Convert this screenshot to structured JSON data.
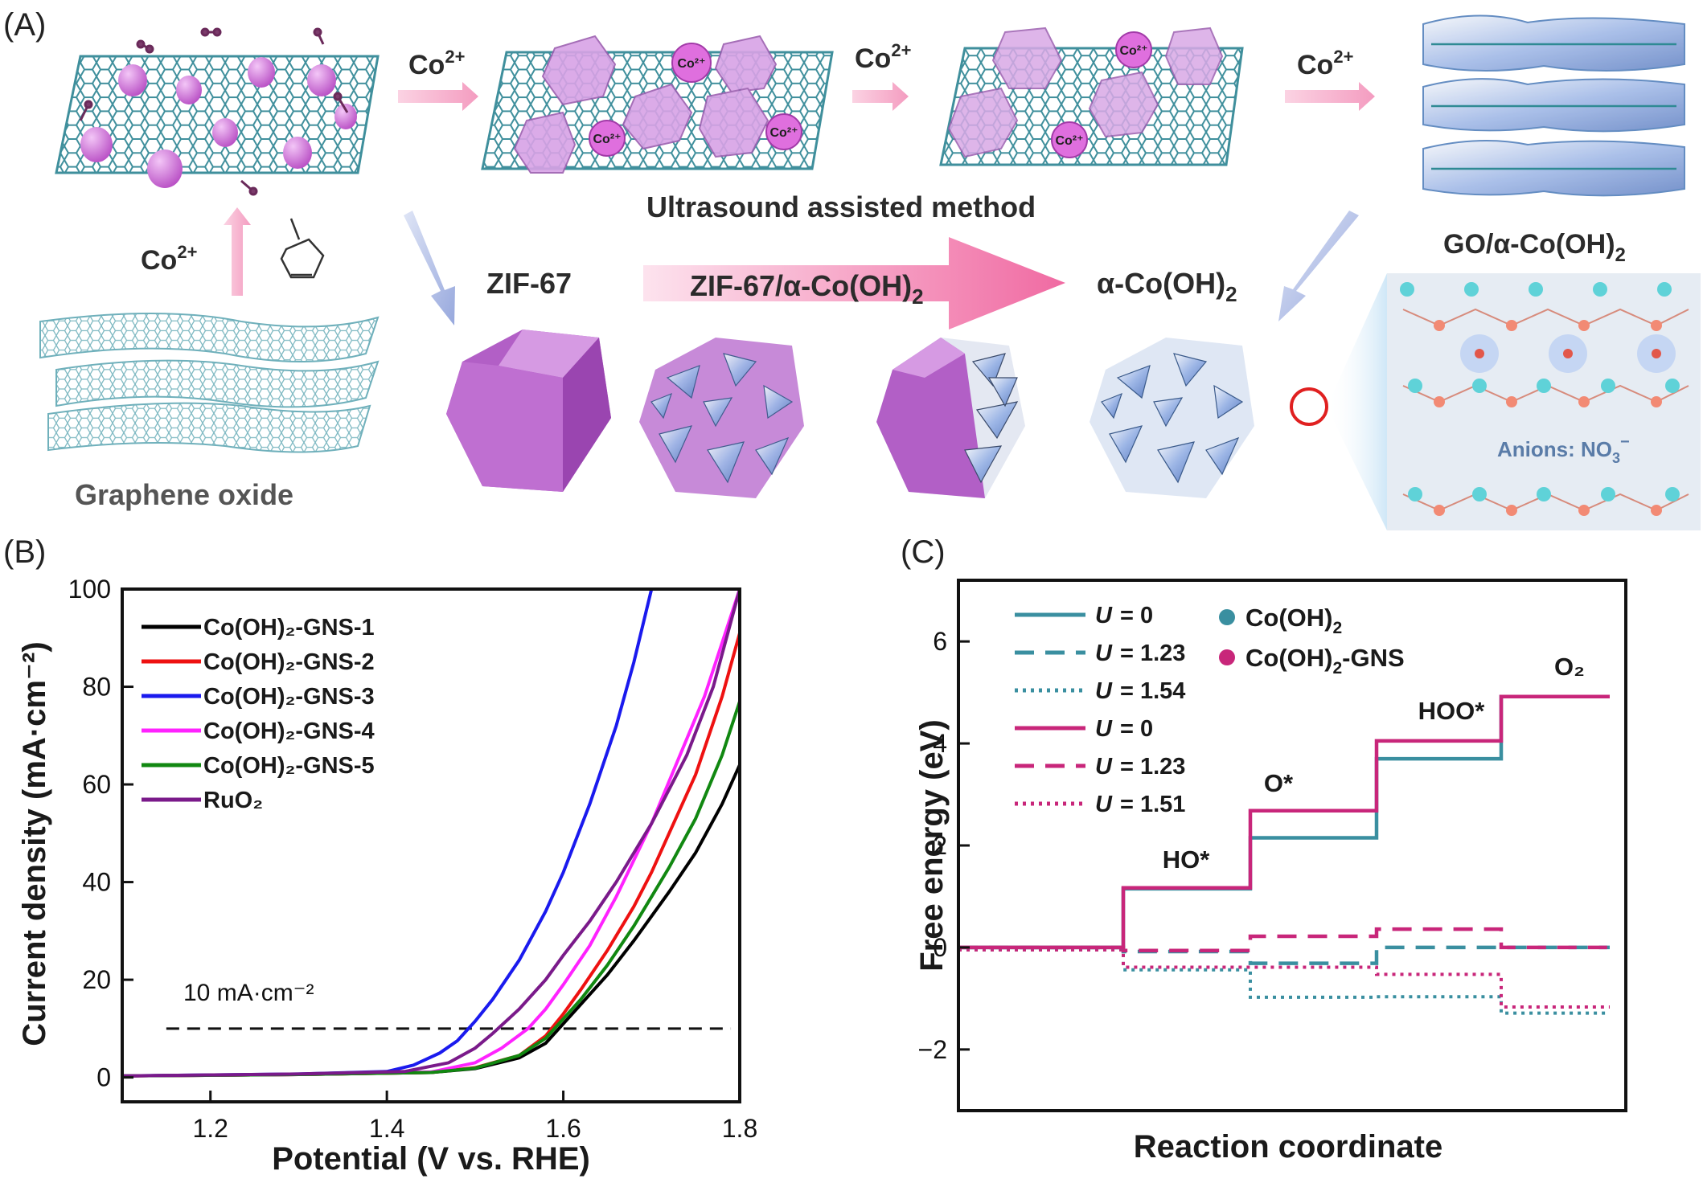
{
  "panel_labels": {
    "a": "(A)",
    "b": "(B)",
    "c": "(C)"
  },
  "scheme": {
    "arrow_labels": {
      "co_1": {
        "base": "Co",
        "sup": "2+"
      },
      "co_2": {
        "base": "Co",
        "sup": "2+"
      },
      "co_3": {
        "base": "Co",
        "sup": "2+"
      },
      "co_4": {
        "base": "Co",
        "sup": "2+"
      }
    },
    "ion_label": "Co²⁺",
    "ultrasound_label": "Ultrasound assisted method",
    "go_coh_label": {
      "main": "GO/α-Co(OH)",
      "sub": "2"
    },
    "zif67_label": "ZIF-67",
    "zif_coh_label": {
      "main": "ZIF-67/α-Co(OH)",
      "sub": "2"
    },
    "acoh_label": {
      "main": "α-Co(OH)",
      "sub": "2"
    },
    "go_label": "Graphene  oxide",
    "anions_label": {
      "main": "Anions: NO",
      "sub": "3",
      "sup": "−"
    }
  },
  "chart_data": [
    {
      "type": "line",
      "panel": "B",
      "xlabel": "Potential (V vs. RHE)",
      "ylabel": "Current density (mA·cm⁻²)",
      "xlim": [
        1.1,
        1.8
      ],
      "ylim": [
        -5,
        100
      ],
      "xticks": [
        1.2,
        1.4,
        1.6,
        1.8
      ],
      "xtick_labels": [
        "1.2",
        "1.4",
        "1.6",
        "1.8"
      ],
      "yticks": [
        0,
        20,
        40,
        60,
        80,
        100
      ],
      "ytick_labels": [
        "0",
        "20",
        "40",
        "60",
        "80",
        "100"
      ],
      "legend_position": "top-left",
      "reference_line": {
        "y": 10,
        "x": [
          1.15,
          1.79
        ],
        "label": "10 mA·cm⁻²"
      },
      "series": [
        {
          "name": "Co(OH)₂-GNS-1",
          "color": "#000000",
          "x": [
            1.1,
            1.3,
            1.45,
            1.5,
            1.55,
            1.58,
            1.6,
            1.62,
            1.65,
            1.68,
            1.7,
            1.72,
            1.75,
            1.78,
            1.8
          ],
          "y": [
            0.3,
            0.6,
            1.0,
            1.8,
            4.0,
            7.0,
            11.0,
            15.0,
            21.0,
            28.0,
            33.0,
            38.0,
            46.0,
            56.0,
            64.0
          ]
        },
        {
          "name": "Co(OH)₂-GNS-2",
          "color": "#ee1111",
          "x": [
            1.1,
            1.3,
            1.45,
            1.5,
            1.55,
            1.58,
            1.6,
            1.62,
            1.65,
            1.68,
            1.7,
            1.72,
            1.75,
            1.78,
            1.8
          ],
          "y": [
            0.3,
            0.6,
            1.0,
            2.0,
            4.5,
            8.5,
            13.0,
            18.0,
            26.0,
            35.0,
            42.0,
            50.0,
            62.0,
            78.0,
            91.0
          ]
        },
        {
          "name": "Co(OH)₂-GNS-3",
          "color": "#1a1aee",
          "x": [
            1.1,
            1.3,
            1.4,
            1.43,
            1.46,
            1.48,
            1.5,
            1.52,
            1.55,
            1.58,
            1.6,
            1.63,
            1.66,
            1.68,
            1.7
          ],
          "y": [
            0.3,
            0.7,
            1.2,
            2.5,
            5.0,
            7.5,
            11.5,
            16.0,
            24.0,
            34.0,
            42.0,
            56.0,
            72.0,
            85.0,
            100.0
          ]
        },
        {
          "name": "Co(OH)₂-GNS-4",
          "color": "#ff22ff",
          "x": [
            1.1,
            1.3,
            1.45,
            1.5,
            1.53,
            1.56,
            1.58,
            1.6,
            1.63,
            1.66,
            1.7,
            1.73,
            1.76,
            1.8
          ],
          "y": [
            0.3,
            0.6,
            1.1,
            3.0,
            6.0,
            10.0,
            14.0,
            19.0,
            27.0,
            37.0,
            52.0,
            65.0,
            78.0,
            100.0
          ]
        },
        {
          "name": "Co(OH)₂-GNS-5",
          "color": "#118811",
          "x": [
            1.1,
            1.3,
            1.45,
            1.5,
            1.55,
            1.58,
            1.6,
            1.62,
            1.65,
            1.68,
            1.7,
            1.72,
            1.75,
            1.78,
            1.8
          ],
          "y": [
            0.3,
            0.6,
            1.0,
            1.9,
            4.5,
            8.0,
            12.0,
            16.0,
            23.0,
            31.0,
            37.0,
            43.0,
            53.0,
            66.0,
            77.0
          ]
        },
        {
          "name": "RuO₂",
          "color": "#7a1a8a",
          "x": [
            1.1,
            1.3,
            1.42,
            1.47,
            1.5,
            1.52,
            1.55,
            1.58,
            1.6,
            1.63,
            1.66,
            1.7,
            1.74,
            1.77,
            1.8
          ],
          "y": [
            0.3,
            0.7,
            1.2,
            3.0,
            6.0,
            9.0,
            14.0,
            20.0,
            25.0,
            32.0,
            40.0,
            52.0,
            66.0,
            80.0,
            100.0
          ]
        }
      ]
    },
    {
      "type": "line",
      "panel": "C",
      "xlabel": "Reaction coordinate",
      "ylabel": "Free energy (eV)",
      "ylim": [
        -3.2,
        7.2
      ],
      "yticks": [
        -2,
        0,
        2,
        4,
        6
      ],
      "ytick_labels": [
        "−2",
        "0",
        "2",
        "4",
        "6"
      ],
      "steps": [
        "",
        "HO*",
        "O*",
        "HOO*",
        "O₂"
      ],
      "legend_position": "top-left",
      "series": [
        {
          "name": "U = 0",
          "label_var": "U",
          "label_val": "= 0",
          "material": "Co(OH)₂",
          "style": "solid",
          "color": "#3a8fa0",
          "levels": [
            0,
            1.15,
            2.15,
            3.7,
            4.92
          ]
        },
        {
          "name": "U = 1.23",
          "label_var": "U",
          "label_val": "= 1.23",
          "material": "Co(OH)₂",
          "style": "dashed",
          "color": "#3a8fa0",
          "levels": [
            0,
            -0.08,
            -0.31,
            0.0,
            0.0
          ]
        },
        {
          "name": "U = 1.54",
          "label_var": "U",
          "label_val": "= 1.54",
          "material": "Co(OH)₂",
          "style": "dotted",
          "color": "#3a8fa0",
          "levels": [
            0,
            -0.39,
            -0.93,
            -0.92,
            -1.24
          ]
        },
        {
          "name": "U = 0",
          "label_var": "U",
          "label_val": "= 0",
          "material": "Co(OH)₂-GNS",
          "style": "solid",
          "color": "#c8267a",
          "levels": [
            0,
            1.17,
            2.68,
            4.05,
            4.92
          ]
        },
        {
          "name": "U = 1.23",
          "label_var": "U",
          "label_val": "= 1.23",
          "material": "Co(OH)₂-GNS",
          "style": "dashed",
          "color": "#c8267a",
          "levels": [
            0,
            -0.06,
            0.22,
            0.36,
            0.0
          ]
        },
        {
          "name": "U = 1.51",
          "label_var": "U",
          "label_val": "= 1.51",
          "material": "Co(OH)₂-GNS",
          "style": "dotted",
          "color": "#c8267a",
          "levels": [
            0,
            -0.34,
            -0.34,
            -0.48,
            -1.12
          ]
        }
      ],
      "material_legend": [
        {
          "name": "Co(OH)",
          "sub": "2",
          "suffix": "",
          "color": "#3a8fa0"
        },
        {
          "name": "Co(OH)",
          "sub": "2",
          "suffix": "-GNS",
          "color": "#c8267a"
        }
      ]
    }
  ],
  "colors": {
    "pink": "#c95bd6",
    "go_teal": "#4a9aa8",
    "arrow_pink": "#f6a3c6",
    "arrow_blue": "#a9b7e3"
  }
}
